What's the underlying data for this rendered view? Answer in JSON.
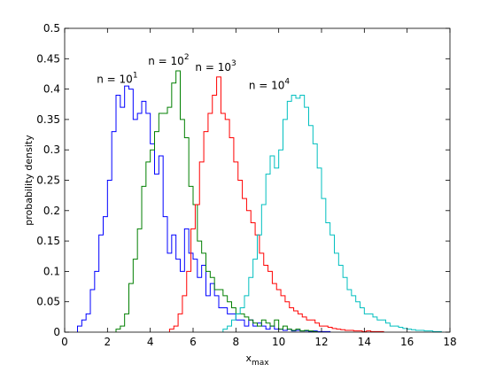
{
  "chart_data": {
    "type": "histogram",
    "xlabel": "x",
    "xlabel_subscript": "max",
    "ylabel": "probability density",
    "xlim": [
      0,
      18
    ],
    "ylim": [
      0,
      0.5
    ],
    "xticks": [
      0,
      2,
      4,
      6,
      8,
      10,
      12,
      14,
      16,
      18
    ],
    "yticks": [
      0,
      0.05,
      0.1,
      0.15,
      0.2,
      0.25,
      0.3,
      0.35,
      0.4,
      0.45,
      0.5
    ],
    "grid": false,
    "annotations": [
      {
        "base": "n = 10",
        "exponent": "1",
        "x": 1.5,
        "y": 0.41
      },
      {
        "base": "n = 10",
        "exponent": "2",
        "x": 3.9,
        "y": 0.44
      },
      {
        "base": "n = 10",
        "exponent": "3",
        "x": 6.1,
        "y": 0.43
      },
      {
        "base": "n = 10",
        "exponent": "4",
        "x": 8.6,
        "y": 0.4
      }
    ],
    "series": [
      {
        "color": "#0000ff",
        "bin_width": 0.2,
        "start": 0.6,
        "values": [
          0.01,
          0.02,
          0.03,
          0.07,
          0.1,
          0.16,
          0.19,
          0.25,
          0.33,
          0.39,
          0.37,
          0.405,
          0.4,
          0.35,
          0.36,
          0.38,
          0.36,
          0.31,
          0.26,
          0.29,
          0.19,
          0.13,
          0.16,
          0.12,
          0.1,
          0.17,
          0.13,
          0.12,
          0.09,
          0.11,
          0.06,
          0.08,
          0.06,
          0.04,
          0.04,
          0.03,
          0.03,
          0.02,
          0.02,
          0.01,
          0.02,
          0.01,
          0.015,
          0.01,
          0.005,
          0.01,
          0.005,
          0.005,
          0.003,
          0.005,
          0.002,
          0.003,
          0.002,
          0.002,
          0.001,
          0.002,
          0.001,
          0.001,
          0.001
        ]
      },
      {
        "color": "#007f00",
        "bin_width": 0.2,
        "start": 2.4,
        "values": [
          0.005,
          0.01,
          0.03,
          0.08,
          0.12,
          0.17,
          0.24,
          0.28,
          0.3,
          0.33,
          0.36,
          0.36,
          0.37,
          0.41,
          0.43,
          0.35,
          0.32,
          0.24,
          0.21,
          0.15,
          0.13,
          0.1,
          0.09,
          0.07,
          0.07,
          0.06,
          0.05,
          0.04,
          0.03,
          0.03,
          0.025,
          0.02,
          0.015,
          0.01,
          0.02,
          0.015,
          0.01,
          0.02,
          0.005,
          0.01,
          0.005,
          0.003,
          0.005,
          0.002,
          0.003,
          0.002,
          0.001
        ]
      },
      {
        "color": "#ff0000",
        "bin_width": 0.2,
        "start": 4.9,
        "values": [
          0.005,
          0.01,
          0.03,
          0.06,
          0.1,
          0.17,
          0.21,
          0.28,
          0.33,
          0.36,
          0.39,
          0.42,
          0.36,
          0.35,
          0.32,
          0.28,
          0.25,
          0.22,
          0.2,
          0.18,
          0.16,
          0.13,
          0.11,
          0.1,
          0.08,
          0.07,
          0.06,
          0.05,
          0.04,
          0.035,
          0.03,
          0.025,
          0.02,
          0.02,
          0.015,
          0.01,
          0.01,
          0.008,
          0.006,
          0.005,
          0.004,
          0.003,
          0.003,
          0.002,
          0.002,
          0.001,
          0.002,
          0.001,
          0.001,
          0.001
        ]
      },
      {
        "color": "#00bfbf",
        "bin_width": 0.2,
        "start": 7.4,
        "values": [
          0.005,
          0.01,
          0.02,
          0.03,
          0.04,
          0.06,
          0.09,
          0.12,
          0.16,
          0.21,
          0.26,
          0.29,
          0.27,
          0.3,
          0.35,
          0.38,
          0.39,
          0.385,
          0.39,
          0.37,
          0.34,
          0.31,
          0.27,
          0.22,
          0.18,
          0.16,
          0.13,
          0.11,
          0.09,
          0.07,
          0.06,
          0.05,
          0.04,
          0.03,
          0.03,
          0.025,
          0.02,
          0.02,
          0.015,
          0.01,
          0.01,
          0.008,
          0.006,
          0.005,
          0.004,
          0.003,
          0.003,
          0.002,
          0.002,
          0.001,
          0.001
        ]
      }
    ]
  }
}
